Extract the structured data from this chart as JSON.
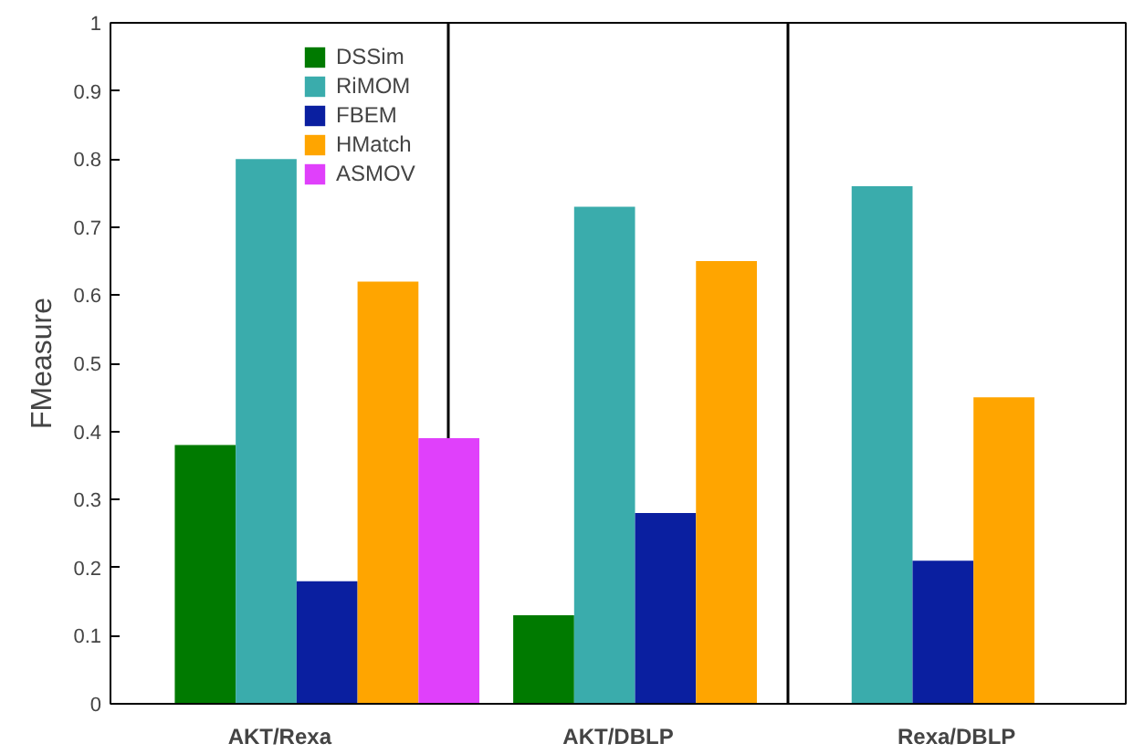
{
  "chart_data": {
    "type": "bar",
    "ylabel": "FMeasure",
    "categories": [
      "AKT/Rexa",
      "AKT/DBLP",
      "Rexa/DBLP"
    ],
    "series": [
      {
        "name": "DSSim",
        "color": "#007a00",
        "values": [
          0.38,
          0.13,
          null
        ]
      },
      {
        "name": "RiMOM",
        "color": "#3aacac",
        "values": [
          0.8,
          0.73,
          0.76
        ]
      },
      {
        "name": "FBEM",
        "color": "#0a1fa0",
        "values": [
          0.18,
          0.28,
          0.21
        ]
      },
      {
        "name": "HMatch",
        "color": "#ffa500",
        "values": [
          0.62,
          0.65,
          0.45
        ]
      },
      {
        "name": "ASMOV",
        "color": "#e040fb",
        "values": [
          0.39,
          null,
          null
        ]
      }
    ],
    "ylim": [
      0,
      1
    ],
    "yticks": [
      0,
      0.1,
      0.2,
      0.3,
      0.4,
      0.5,
      0.6,
      0.7,
      0.8,
      0.9,
      1
    ],
    "grid": "x",
    "legend": "top"
  }
}
